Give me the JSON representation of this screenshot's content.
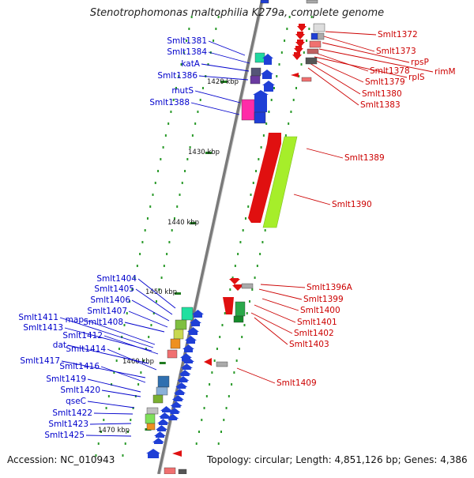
{
  "title": "Stenotrophomonas maltophilia K279a, complete genome",
  "footer": {
    "accession": "Accession: NC_010943",
    "topology": "Topology: circular; Length: 4,851,126 bp; Genes: 4,386"
  },
  "scale_labels": [
    "1420 kbp",
    "1430 kbp",
    "1440 kbp",
    "1450 kbp",
    "1460 kbp",
    "1470 kbp"
  ],
  "left_labels": [
    "Smlt1381",
    "Smlt1384",
    "katA",
    "Smlt1386",
    "mutS",
    "Smlt1388",
    "Smlt1404",
    "Smlt1405",
    "Smlt1406",
    "Smlt1407",
    "Smlt1408",
    "map",
    "Smlt1411",
    "Smlt1413",
    "Smlt1412",
    "dat",
    "Smlt1414",
    "Smlt1417",
    "Smlt1416",
    "Smlt1419",
    "Smlt1420",
    "qseC",
    "Smlt1422",
    "Smlt1423",
    "Smlt1425"
  ],
  "right_labels": [
    "Smlt1372",
    "Smlt1373",
    "rpsP",
    "rimM",
    "Smlt1378",
    "rplS",
    "Smlt1379",
    "Smlt1380",
    "Smlt1383",
    "Smlt1389",
    "Smlt1390",
    "Smlt1396A",
    "Smlt1399",
    "Smlt1400",
    "Smlt1401",
    "Smlt1402",
    "Smlt1403",
    "Smlt1409"
  ],
  "colors": {
    "forward_label": "#0000cc",
    "reverse_label": "#cc0000",
    "backbone": "#888888"
  }
}
